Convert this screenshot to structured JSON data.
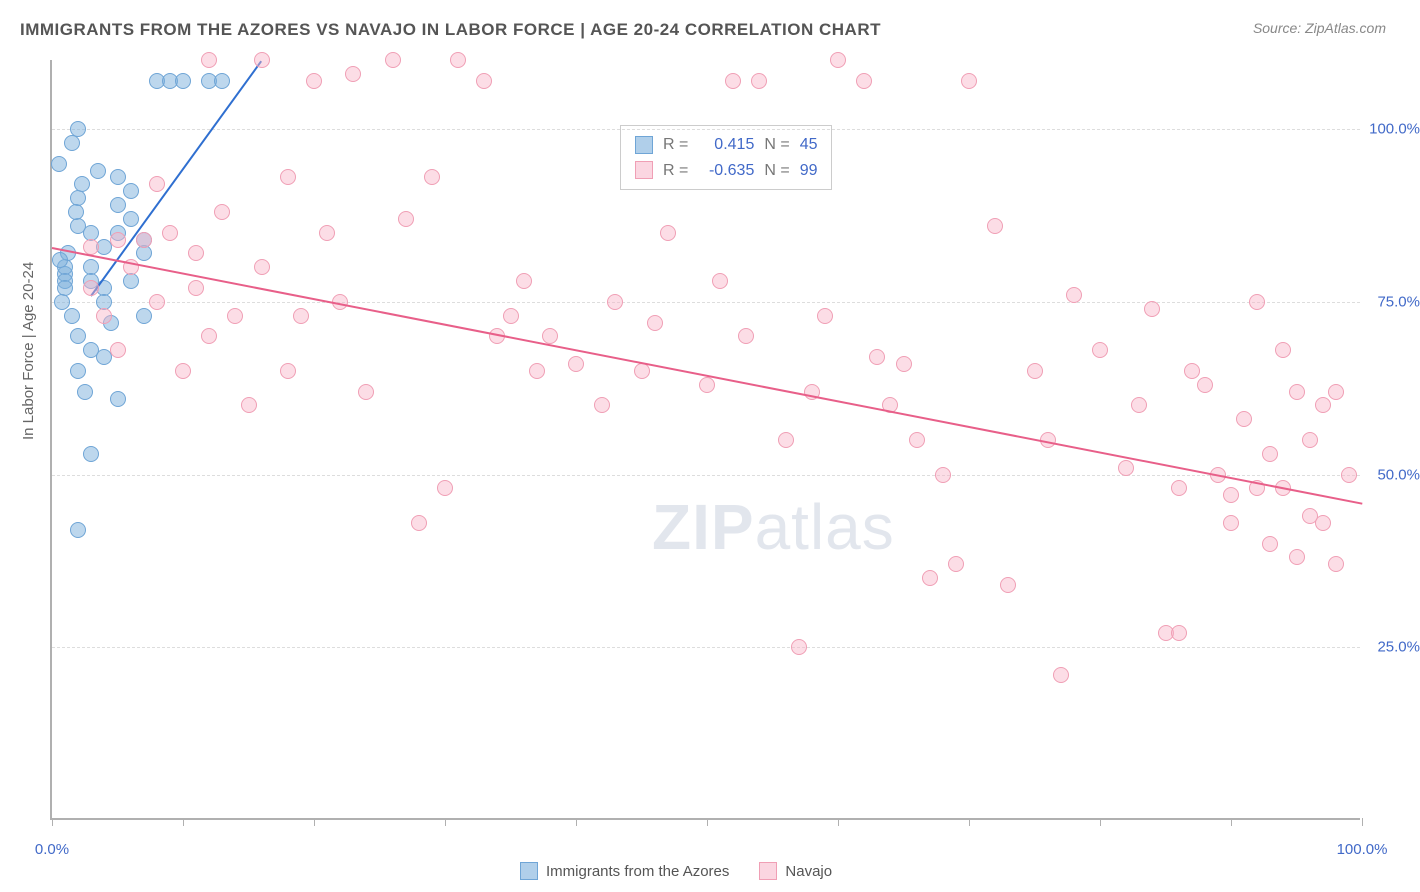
{
  "title": "IMMIGRANTS FROM THE AZORES VS NAVAJO IN LABOR FORCE | AGE 20-24 CORRELATION CHART",
  "source": "Source: ZipAtlas.com",
  "y_axis_label": "In Labor Force | Age 20-24",
  "watermark_bold": "ZIP",
  "watermark_rest": "atlas",
  "legend_stats": {
    "series1": {
      "r_label": "R =",
      "r_val": "0.415",
      "n_label": "N =",
      "n_val": "45"
    },
    "series2": {
      "r_label": "R =",
      "r_val": "-0.635",
      "n_label": "N =",
      "n_val": "99"
    }
  },
  "bottom_legend": {
    "series1_label": "Immigrants from the Azores",
    "series2_label": "Navajo"
  },
  "chart": {
    "type": "scatter",
    "xlim": [
      0,
      100
    ],
    "ylim": [
      0,
      110
    ],
    "y_ticks": [
      25,
      50,
      75,
      100
    ],
    "y_tick_labels": [
      "25.0%",
      "50.0%",
      "75.0%",
      "100.0%"
    ],
    "x_ticks": [
      0,
      10,
      20,
      30,
      40,
      50,
      60,
      70,
      80,
      90,
      100
    ],
    "x_tick_labels_shown": {
      "0": "0.0%",
      "100": "100.0%"
    },
    "grid_color": "#dddddd",
    "background_color": "#ffffff",
    "border_color": "#b0b0b0",
    "marker_radius": 8,
    "series": [
      {
        "name": "azores",
        "color_fill": "rgba(124,175,220,0.5)",
        "color_stroke": "#6fa5d6",
        "trend_color": "#2f6fd0",
        "trend": {
          "x1": 3,
          "y1": 76,
          "x2": 16,
          "y2": 110
        },
        "points": [
          [
            1,
            79
          ],
          [
            1,
            80
          ],
          [
            1,
            78
          ],
          [
            0.5,
            95
          ],
          [
            1.5,
            98
          ],
          [
            2,
            100
          ],
          [
            2,
            90
          ],
          [
            2,
            86
          ],
          [
            3,
            85
          ],
          [
            3,
            80
          ],
          [
            3,
            78
          ],
          [
            4,
            77
          ],
          [
            4,
            75
          ],
          [
            4,
            67
          ],
          [
            5,
            61
          ],
          [
            4.5,
            72
          ],
          [
            5,
            89
          ],
          [
            5,
            93
          ],
          [
            6,
            91
          ],
          [
            6,
            87
          ],
          [
            7,
            82
          ],
          [
            7,
            84
          ],
          [
            7,
            73
          ],
          [
            8,
            107
          ],
          [
            9,
            107
          ],
          [
            10,
            107
          ],
          [
            12,
            107
          ],
          [
            13,
            107
          ],
          [
            2,
            42
          ],
          [
            3,
            53
          ],
          [
            2.5,
            62
          ],
          [
            2,
            70
          ],
          [
            1,
            77
          ],
          [
            1.2,
            82
          ],
          [
            1.8,
            88
          ],
          [
            2.3,
            92
          ],
          [
            3.5,
            94
          ],
          [
            4,
            83
          ],
          [
            5,
            85
          ],
          [
            6,
            78
          ],
          [
            3,
            68
          ],
          [
            2,
            65
          ],
          [
            1.5,
            73
          ],
          [
            0.8,
            75
          ],
          [
            0.6,
            81
          ]
        ]
      },
      {
        "name": "navajo",
        "color_fill": "rgba(248,180,200,0.45)",
        "color_stroke": "#f09fb5",
        "trend_color": "#e85f89",
        "trend": {
          "x1": 0,
          "y1": 83,
          "x2": 100,
          "y2": 46
        },
        "points": [
          [
            3,
            83
          ],
          [
            5,
            84
          ],
          [
            7,
            84
          ],
          [
            8,
            92
          ],
          [
            8,
            75
          ],
          [
            10,
            65
          ],
          [
            11,
            77
          ],
          [
            12,
            70
          ],
          [
            12,
            110
          ],
          [
            14,
            73
          ],
          [
            15,
            60
          ],
          [
            16,
            110
          ],
          [
            18,
            93
          ],
          [
            19,
            73
          ],
          [
            20,
            107
          ],
          [
            21,
            85
          ],
          [
            22,
            75
          ],
          [
            24,
            62
          ],
          [
            26,
            110
          ],
          [
            27,
            87
          ],
          [
            28,
            43
          ],
          [
            29,
            93
          ],
          [
            30,
            48
          ],
          [
            31,
            110
          ],
          [
            33,
            107
          ],
          [
            35,
            73
          ],
          [
            36,
            78
          ],
          [
            37,
            65
          ],
          [
            38,
            70
          ],
          [
            40,
            66
          ],
          [
            42,
            60
          ],
          [
            43,
            75
          ],
          [
            45,
            65
          ],
          [
            47,
            85
          ],
          [
            50,
            63
          ],
          [
            52,
            107
          ],
          [
            53,
            70
          ],
          [
            54,
            107
          ],
          [
            56,
            55
          ],
          [
            57,
            25
          ],
          [
            58,
            62
          ],
          [
            60,
            110
          ],
          [
            62,
            107
          ],
          [
            63,
            67
          ],
          [
            65,
            66
          ],
          [
            66,
            55
          ],
          [
            67,
            35
          ],
          [
            68,
            50
          ],
          [
            69,
            37
          ],
          [
            70,
            107
          ],
          [
            72,
            86
          ],
          [
            73,
            34
          ],
          [
            75,
            65
          ],
          [
            76,
            55
          ],
          [
            77,
            21
          ],
          [
            78,
            76
          ],
          [
            80,
            68
          ],
          [
            82,
            51
          ],
          [
            83,
            60
          ],
          [
            84,
            74
          ],
          [
            85,
            27
          ],
          [
            86,
            48
          ],
          [
            86,
            27
          ],
          [
            87,
            65
          ],
          [
            88,
            63
          ],
          [
            89,
            50
          ],
          [
            90,
            43
          ],
          [
            90,
            47
          ],
          [
            91,
            58
          ],
          [
            92,
            48
          ],
          [
            92,
            75
          ],
          [
            93,
            40
          ],
          [
            93,
            53
          ],
          [
            94,
            48
          ],
          [
            94,
            68
          ],
          [
            95,
            38
          ],
          [
            95,
            62
          ],
          [
            96,
            44
          ],
          [
            96,
            55
          ],
          [
            97,
            60
          ],
          [
            97,
            43
          ],
          [
            98,
            62
          ],
          [
            98,
            37
          ],
          [
            99,
            50
          ],
          [
            3,
            77
          ],
          [
            4,
            73
          ],
          [
            5,
            68
          ],
          [
            6,
            80
          ],
          [
            9,
            85
          ],
          [
            11,
            82
          ],
          [
            13,
            88
          ],
          [
            16,
            80
          ],
          [
            18,
            65
          ],
          [
            23,
            108
          ],
          [
            34,
            70
          ],
          [
            46,
            72
          ],
          [
            51,
            78
          ],
          [
            59,
            73
          ],
          [
            64,
            60
          ]
        ]
      }
    ]
  }
}
